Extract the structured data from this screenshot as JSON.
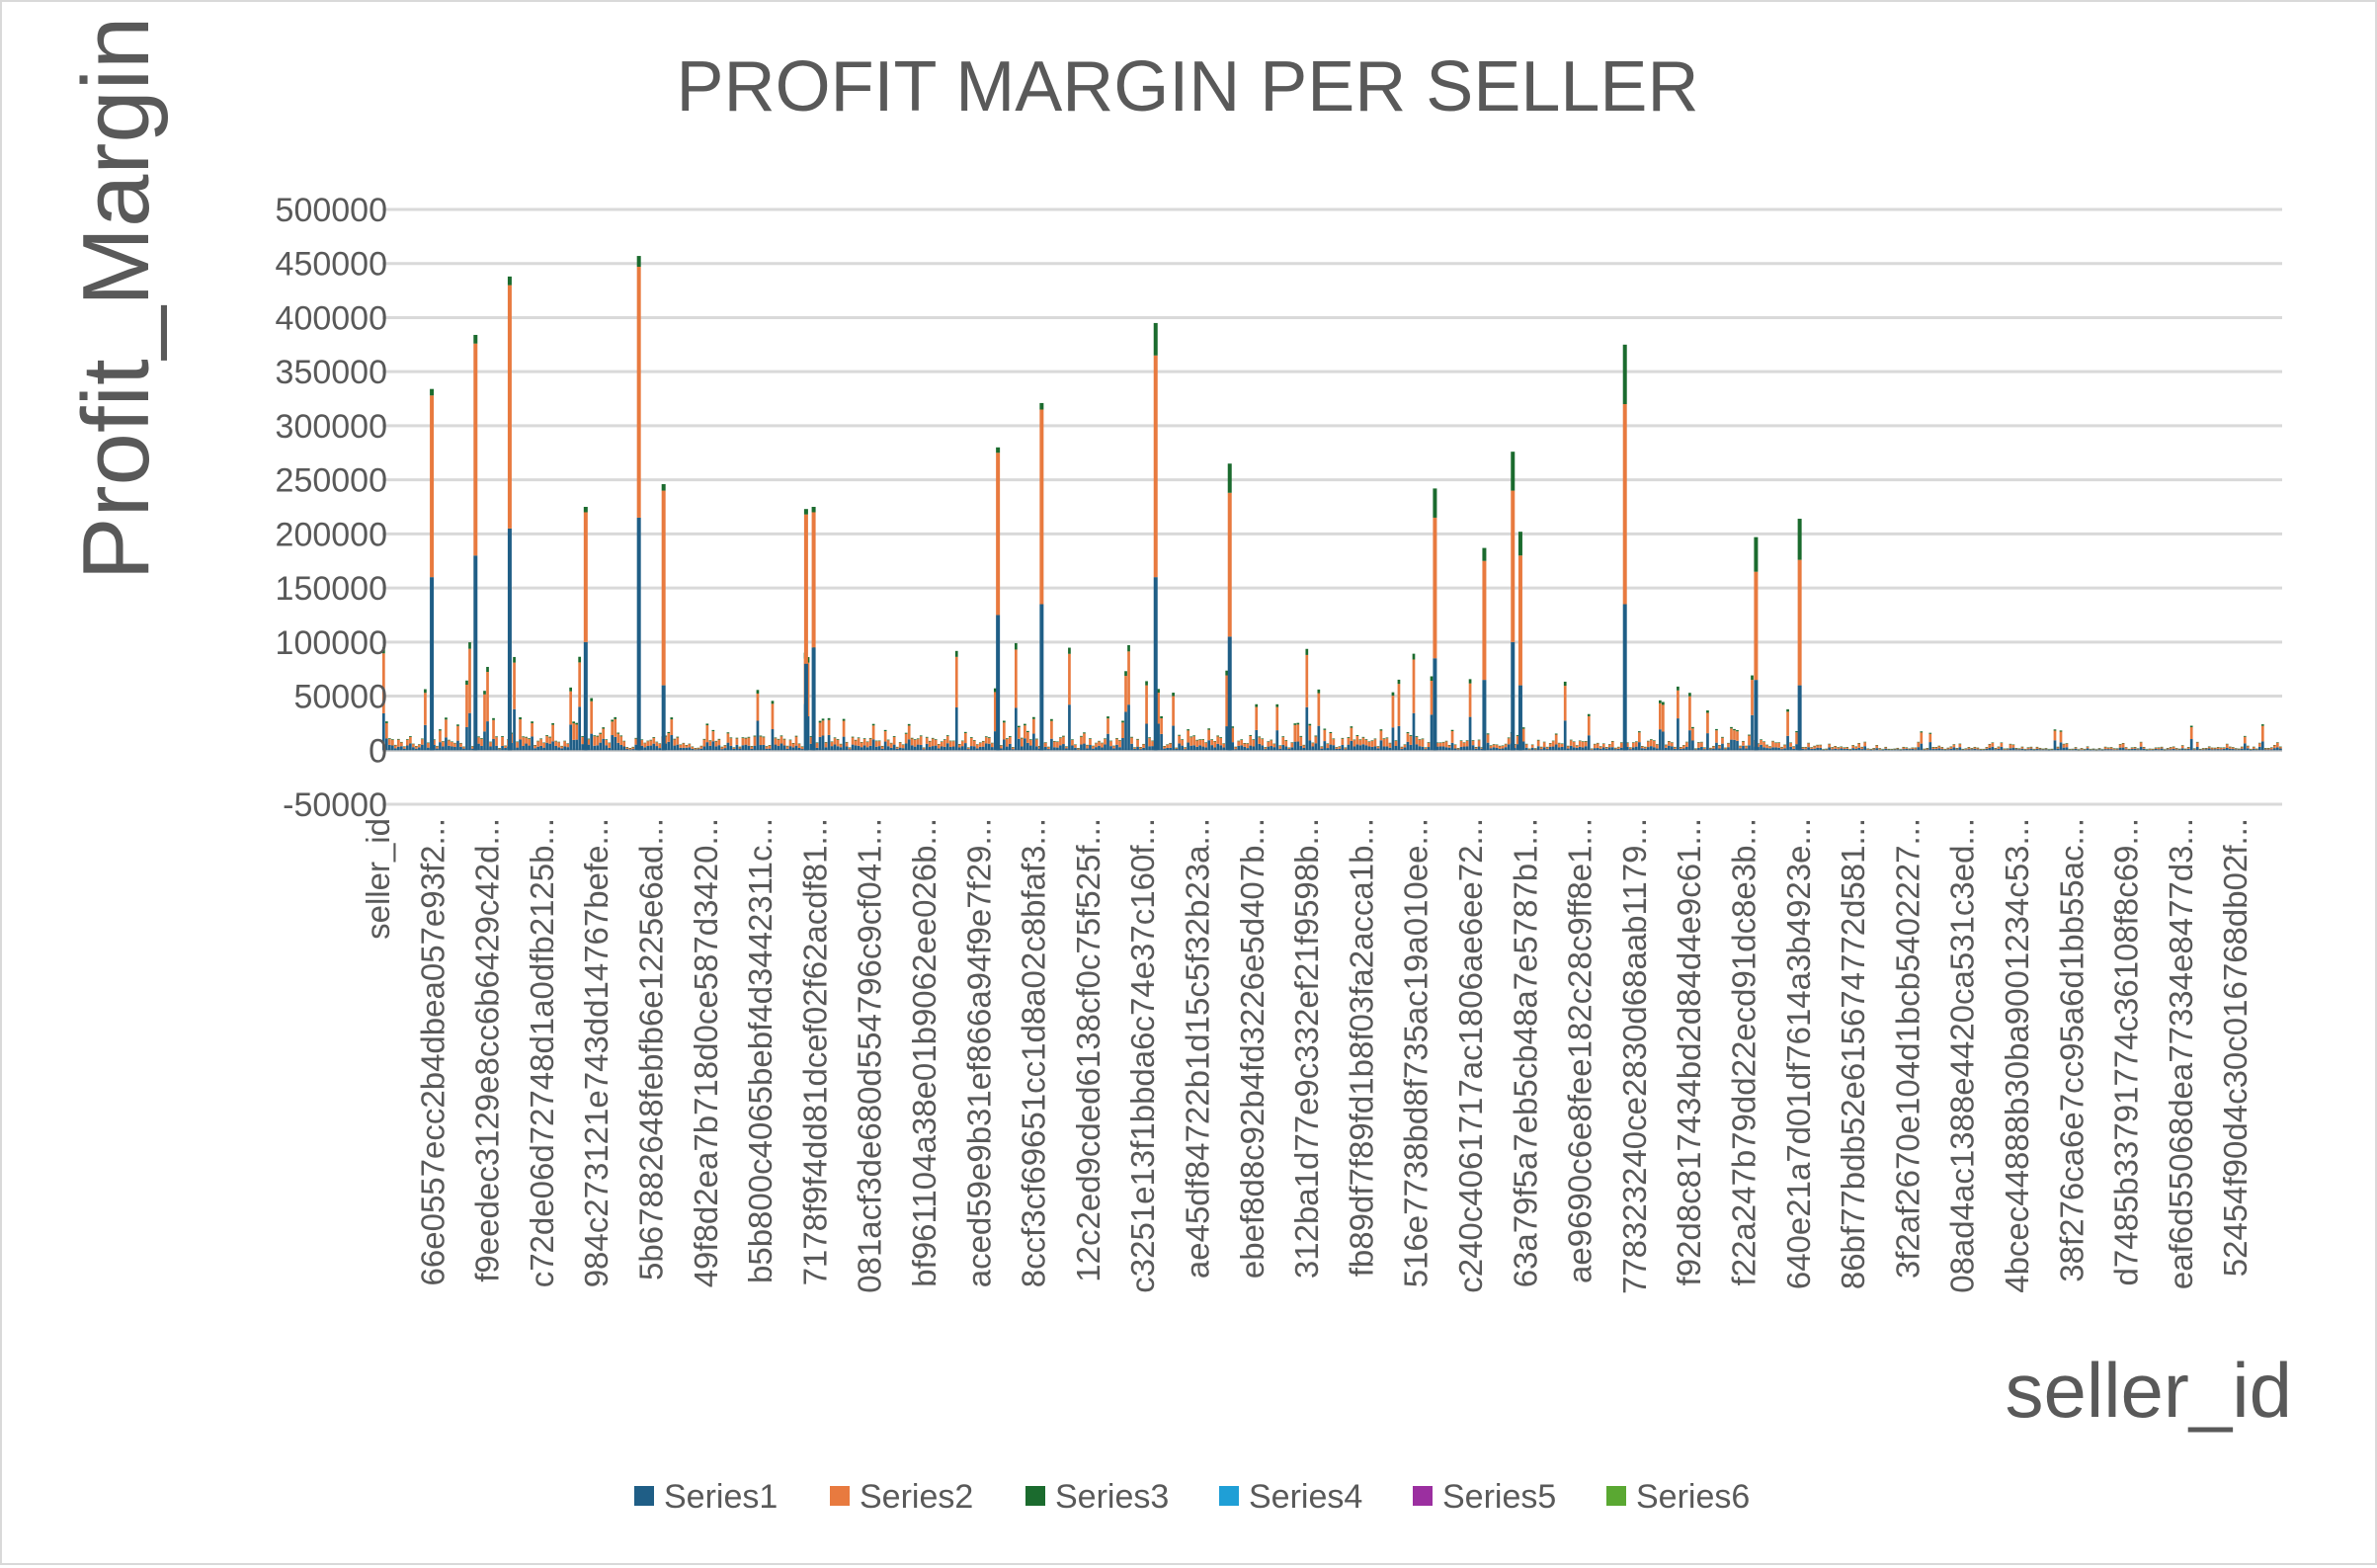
{
  "chart_data": {
    "type": "bar",
    "stacked": true,
    "title": "PROFIT MARGIN PER SELLER",
    "ylabel": "Profit_Margin",
    "xlabel": "seller_id",
    "ylim": [
      -50000,
      500000
    ],
    "yticks": [
      -50000,
      0,
      50000,
      100000,
      150000,
      200000,
      250000,
      300000,
      350000,
      400000,
      450000,
      500000
    ],
    "grid": true,
    "legend_position": "bottom",
    "colors": {
      "Series1": "#1f5e86",
      "Series2": "#e87a3f",
      "Series3": "#1b6b2e",
      "Series4": "#1f9fd6",
      "Series5": "#9b2fa0",
      "Series6": "#5aa832"
    },
    "series_names": [
      "Series1",
      "Series2",
      "Series3",
      "Series4",
      "Series5",
      "Series6"
    ],
    "tick_labels": [
      "seller_id",
      "66e0557ecc2b4dbea057e93f2...",
      "f9eedec3129e8cc6b6429c42d...",
      "c72de06d72748d1a0dfb2125b...",
      "984c273121e743dd14767befe...",
      "5b67882648febfb6e1225e6ad...",
      "49f8d2ea7b718d0ce587d3420...",
      "b5b800c4065bebf4d3442311c...",
      "7178f9f4dd81dcef02f62acdf81...",
      "081acf3de680d554796c9cf041...",
      "bf961104a38e01b9062ee026b...",
      "aced59e9b31ef866a94f9e7f29...",
      "8ccf3cf69651cc1d8a02c8bfaf3...",
      "12c2ed9cded6138cf0c75f525f...",
      "c3251e13f1bbda6c74e37c160f...",
      "ae45df84722b1d15c5f32b23a...",
      "ebef8d8c92b4fd3226e5d407b...",
      "312ba1d77e9c332ef21f9598b...",
      "fb89df7f89fd1b8f03fa2acca1b...",
      "516e7738bd8f735ac19a010ee...",
      "c240c4061717ac1806ae6ee72...",
      "63a79f5a7eb5cb48a7e5787b1...",
      "ae9690c6e8fee182c28c9ff8e1...",
      "778323240ce2830d68aab1179...",
      "f92d8c817434bd2d84d4e9c61...",
      "f22a247b79dd22ecd91dc8e3b...",
      "640e21a7d01df7614a3b4923e...",
      "86bf77bdb52e615674772d581...",
      "3f2af2670e104d1bcb5402227...",
      "08ad4ac1388e4420ca531c3ed...",
      "4bcec44888b30ba9001234c53...",
      "38f276ca6e7cc95a6d1bb55ac...",
      "d7485b33791774c36108f8c69...",
      "eaf6d55068dea77334e8477d3...",
      "52454f90d4c30c016768db02f..."
    ],
    "peaks": [
      {
        "pos": 0.025,
        "s1": 160000,
        "s2": 168000,
        "s3": 6000
      },
      {
        "pos": 0.048,
        "s1": 180000,
        "s2": 196000,
        "s3": 8000
      },
      {
        "pos": 0.066,
        "s1": 205000,
        "s2": 225000,
        "s3": 8000
      },
      {
        "pos": 0.106,
        "s1": 100000,
        "s2": 120000,
        "s3": 5000
      },
      {
        "pos": 0.134,
        "s1": 215000,
        "s2": 232000,
        "s3": 10000
      },
      {
        "pos": 0.147,
        "s1": 60000,
        "s2": 180000,
        "s3": 6000
      },
      {
        "pos": 0.222,
        "s1": 80000,
        "s2": 138000,
        "s3": 5000
      },
      {
        "pos": 0.226,
        "s1": 95000,
        "s2": 125000,
        "s3": 5000
      },
      {
        "pos": 0.323,
        "s1": 125000,
        "s2": 150000,
        "s3": 5000
      },
      {
        "pos": 0.346,
        "s1": 135000,
        "s2": 180000,
        "s3": 6000
      },
      {
        "pos": 0.406,
        "s1": 160000,
        "s2": 205000,
        "s3": 30000
      },
      {
        "pos": 0.445,
        "s1": 105000,
        "s2": 133000,
        "s3": 27000
      },
      {
        "pos": 0.553,
        "s1": 85000,
        "s2": 130000,
        "s3": 27000
      },
      {
        "pos": 0.579,
        "s1": 65000,
        "s2": 110000,
        "s3": 12000
      },
      {
        "pos": 0.594,
        "s1": 100000,
        "s2": 140000,
        "s3": 36000
      },
      {
        "pos": 0.598,
        "s1": 60000,
        "s2": 120000,
        "s3": 22000
      },
      {
        "pos": 0.653,
        "s1": 135000,
        "s2": 185000,
        "s3": 55000
      },
      {
        "pos": 0.722,
        "s1": 65000,
        "s2": 100000,
        "s3": 32000
      },
      {
        "pos": 0.745,
        "s1": 60000,
        "s2": 116000,
        "s3": 38000
      }
    ]
  }
}
